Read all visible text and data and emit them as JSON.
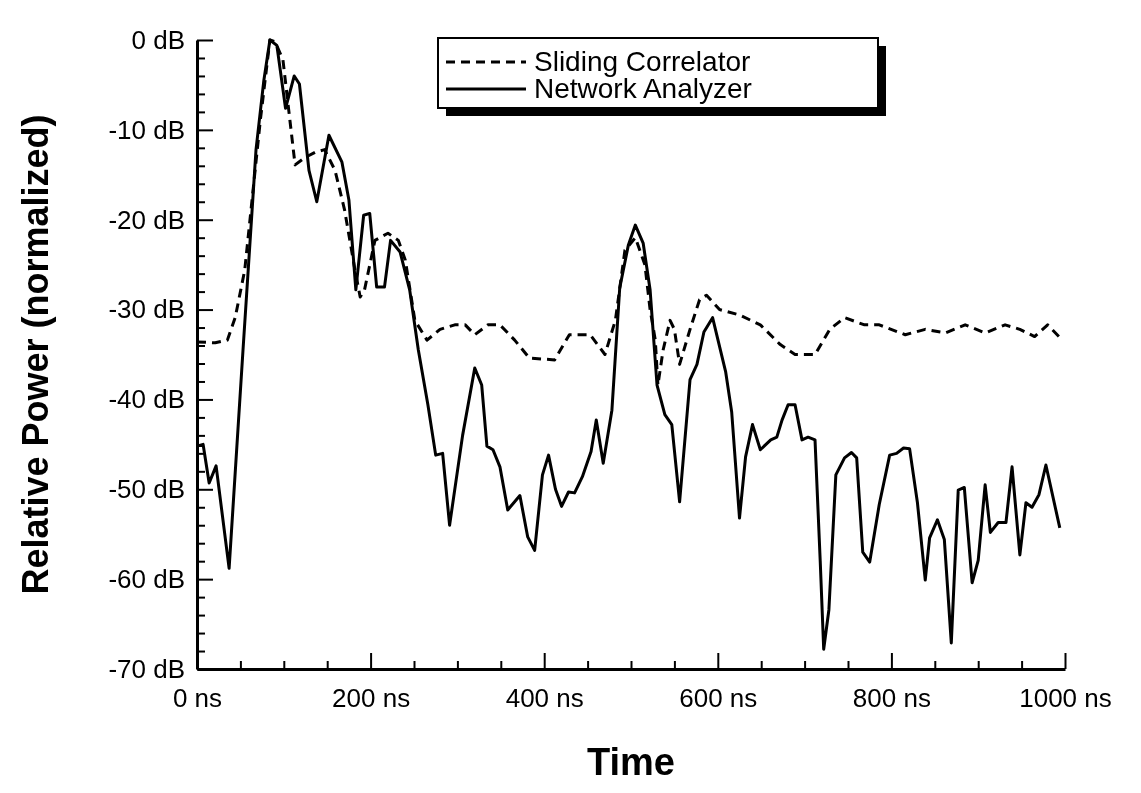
{
  "chart_data": {
    "type": "line",
    "xlabel": "Time",
    "ylabel": "Relative Power (normalized)",
    "xlim": [
      0,
      1000
    ],
    "ylim": [
      -70,
      0
    ],
    "xticks": [
      {
        "value": 0,
        "label": "0 ns"
      },
      {
        "value": 50,
        "label": null
      },
      {
        "value": 100,
        "label": null
      },
      {
        "value": 150,
        "label": null
      },
      {
        "value": 200,
        "label": "200 ns"
      },
      {
        "value": 250,
        "label": null
      },
      {
        "value": 300,
        "label": null
      },
      {
        "value": 350,
        "label": null
      },
      {
        "value": 400,
        "label": "400 ns"
      },
      {
        "value": 450,
        "label": null
      },
      {
        "value": 500,
        "label": null
      },
      {
        "value": 550,
        "label": null
      },
      {
        "value": 600,
        "label": "600 ns"
      },
      {
        "value": 650,
        "label": null
      },
      {
        "value": 700,
        "label": null
      },
      {
        "value": 750,
        "label": null
      },
      {
        "value": 800,
        "label": "800 ns"
      },
      {
        "value": 850,
        "label": null
      },
      {
        "value": 900,
        "label": null
      },
      {
        "value": 950,
        "label": null
      },
      {
        "value": 1000,
        "label": "1000 ns"
      }
    ],
    "yticks": [
      {
        "value": -70,
        "label": "-70 dB"
      },
      {
        "value": -68,
        "label": null
      },
      {
        "value": -66,
        "label": null
      },
      {
        "value": -64,
        "label": null
      },
      {
        "value": -62,
        "label": null
      },
      {
        "value": -60,
        "label": "-60 dB"
      },
      {
        "value": -58,
        "label": null
      },
      {
        "value": -56,
        "label": null
      },
      {
        "value": -54,
        "label": null
      },
      {
        "value": -52,
        "label": null
      },
      {
        "value": -50,
        "label": "-50 dB"
      },
      {
        "value": -48,
        "label": null
      },
      {
        "value": -46,
        "label": null
      },
      {
        "value": -44,
        "label": null
      },
      {
        "value": -42,
        "label": null
      },
      {
        "value": -40,
        "label": "-40 dB"
      },
      {
        "value": -38,
        "label": null
      },
      {
        "value": -36,
        "label": null
      },
      {
        "value": -34,
        "label": null
      },
      {
        "value": -32,
        "label": null
      },
      {
        "value": -30,
        "label": "-30 dB"
      },
      {
        "value": -28,
        "label": null
      },
      {
        "value": -26,
        "label": null
      },
      {
        "value": -24,
        "label": null
      },
      {
        "value": -22,
        "label": null
      },
      {
        "value": -20,
        "label": "-20 dB"
      },
      {
        "value": -18,
        "label": null
      },
      {
        "value": -16,
        "label": null
      },
      {
        "value": -14,
        "label": null
      },
      {
        "value": -12,
        "label": null
      },
      {
        "value": -10,
        "label": "-10 dB"
      },
      {
        "value": -8,
        "label": null
      },
      {
        "value": -6,
        "label": null
      },
      {
        "value": -4,
        "label": null
      },
      {
        "value": -2,
        "label": null
      },
      {
        "value": 0,
        "label": "0 dB"
      }
    ],
    "grid": false,
    "legend": "top right",
    "marker": "none",
    "series": [
      {
        "name": "Sliding Correlator",
        "color": "#000000",
        "line_style": "dashed",
        "x": [
          0,
          21,
          35,
          44,
          55,
          73,
          84,
          90,
          99,
          107,
          113,
          124,
          136,
          147,
          159,
          170,
          182,
          188,
          193,
          205,
          220,
          232,
          240,
          251,
          265,
          280,
          297,
          309,
          320,
          335,
          349,
          366,
          383,
          412,
          429,
          453,
          470,
          482,
          493,
          505,
          516,
          522,
          528,
          531,
          537,
          545,
          550,
          556,
          568,
          579,
          587,
          602,
          625,
          649,
          672,
          689,
          712,
          729,
          746,
          769,
          786,
          816,
          839,
          862,
          885,
          908,
          931,
          948,
          965,
          980,
          997
        ],
        "values": [
          -33.6,
          -33.7,
          -33.4,
          -30.9,
          -25.6,
          -8.9,
          0,
          -0.2,
          -2.2,
          -8.9,
          -13.9,
          -13.1,
          -12.5,
          -12.2,
          -14.5,
          -18.9,
          -25.6,
          -28.6,
          -27.8,
          -22.3,
          -21.5,
          -22.3,
          -24.5,
          -31.2,
          -33.4,
          -32.2,
          -31.7,
          -31.7,
          -32.8,
          -31.7,
          -31.7,
          -33.4,
          -35.4,
          -35.6,
          -32.8,
          -32.8,
          -35,
          -31.2,
          -23.4,
          -22,
          -25,
          -30,
          -33.4,
          -38.4,
          -34.5,
          -31.2,
          -32.2,
          -36.1,
          -32.2,
          -28.9,
          -28.4,
          -30,
          -30.6,
          -31.7,
          -33.9,
          -35,
          -35,
          -32.2,
          -30.9,
          -31.7,
          -31.7,
          -32.8,
          -32.2,
          -32.6,
          -31.7,
          -32.6,
          -31.7,
          -32.2,
          -33,
          -31.7,
          -33.4
        ]
      },
      {
        "name": "Network Analyzer",
        "color": "#000000",
        "line_style": "solid",
        "x": [
          0,
          7,
          14,
          22,
          37,
          53,
          68,
          77,
          84,
          92,
          102,
          112,
          118,
          129,
          138,
          152,
          167,
          175,
          183,
          192,
          199,
          207,
          216,
          223,
          234,
          245,
          255,
          266,
          275,
          283,
          291,
          306,
          320,
          328,
          334,
          341,
          349,
          358,
          372,
          381,
          389,
          398,
          405,
          413,
          420,
          428,
          435,
          444,
          454,
          460,
          468,
          478,
          487,
          497,
          505,
          514,
          522,
          530,
          539,
          547,
          556,
          568,
          576,
          584,
          594,
          609,
          616,
          625,
          632,
          640,
          649,
          661,
          668,
          674,
          681,
          689,
          697,
          704,
          712,
          718,
          722,
          728,
          736,
          746,
          754,
          760,
          767,
          775,
          786,
          798,
          806,
          814,
          821,
          830,
          839,
          844,
          853,
          861,
          869,
          877,
          884,
          893,
          900,
          908,
          914,
          923,
          932,
          939,
          948,
          955,
          962,
          970,
          978,
          994
        ],
        "values": [
          -45.2,
          -45,
          -49.3,
          -47.4,
          -58.8,
          -34.5,
          -12.2,
          -4.5,
          0,
          -0.6,
          -7.6,
          -4,
          -4.9,
          -14.5,
          -18,
          -10.6,
          -13.6,
          -17.8,
          -27.8,
          -19.5,
          -19.3,
          -27.5,
          -27.5,
          -22.3,
          -23.6,
          -27.8,
          -34.5,
          -40.6,
          -46.2,
          -46,
          -54,
          -44,
          -36.5,
          -38.4,
          -45.2,
          -45.6,
          -47.5,
          -52.3,
          -50.7,
          -55.3,
          -56.8,
          -48.4,
          -46.2,
          -50,
          -51.9,
          -50.3,
          -50.4,
          -48.6,
          -45.8,
          -42.3,
          -47.1,
          -41.2,
          -27.6,
          -22.8,
          -20.6,
          -22.6,
          -27.8,
          -38.4,
          -41.7,
          -42.8,
          -51.4,
          -37.8,
          -36.1,
          -32.5,
          -30.9,
          -36.9,
          -41.4,
          -53.2,
          -46.4,
          -42.8,
          -45.6,
          -44.5,
          -44.2,
          -42.3,
          -40.6,
          -40.6,
          -44.5,
          -44.2,
          -44.5,
          -58,
          -67.8,
          -63.4,
          -48.4,
          -46.5,
          -45.9,
          -46.5,
          -57,
          -58.1,
          -51.7,
          -46.2,
          -46,
          -45.4,
          -45.5,
          -51.5,
          -60.1,
          -55.4,
          -53.4,
          -55.6,
          -67.1,
          -50.1,
          -49.8,
          -60.4,
          -57.9,
          -49.5,
          -54.8,
          -53.7,
          -53.7,
          -47.5,
          -57.3,
          -51.5,
          -52,
          -50.6,
          -47.3,
          -54.3
        ]
      }
    ]
  }
}
